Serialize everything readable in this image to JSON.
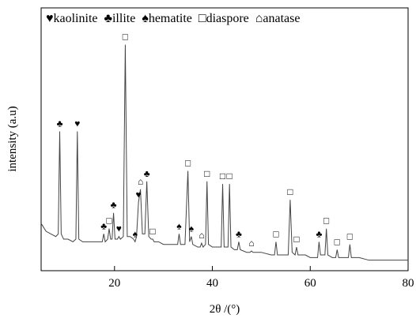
{
  "chart_data": {
    "type": "line",
    "x_label": "2θ /(°)",
    "y_label": "intensity (a.u)",
    "legend": [
      {
        "symbol": "♥",
        "name": "kaolinite"
      },
      {
        "symbol": "♣",
        "name": "illite"
      },
      {
        "symbol": "♠",
        "name": "hematite"
      },
      {
        "symbol": "□",
        "name": "diaspore"
      },
      {
        "symbol": "⌂",
        "name": "anatase"
      }
    ],
    "xlim": [
      5,
      80
    ],
    "xticks": [
      20,
      40,
      60,
      80
    ],
    "ylim": [
      0,
      100
    ],
    "color": "#444444",
    "x": [
      5,
      6,
      7,
      8,
      8.5,
      8.8,
      9.1,
      9.6,
      10.5,
      11.5,
      12.1,
      12.4,
      12.7,
      13.5,
      15,
      16.5,
      17.5,
      17.8,
      18.1,
      18.6,
      18.9,
      19.2,
      19.5,
      19.8,
      20.1,
      20.6,
      20.9,
      21.2,
      21.8,
      22.2,
      22.6,
      23.2,
      23.9,
      24.2,
      24.5,
      24.9,
      25.3,
      25.7,
      26.2,
      26.6,
      27,
      27.5,
      27.8,
      28.1,
      29,
      30,
      31,
      32,
      32.9,
      33.2,
      33.5,
      34.4,
      35,
      35.35,
      35.7,
      36,
      37,
      37.5,
      37.8,
      38.1,
      38.6,
      38.9,
      39.2,
      40,
      41,
      41.8,
      42.1,
      42.4,
      43.2,
      43.5,
      43.8,
      44.5,
      45.1,
      45.4,
      45.7,
      47,
      47.7,
      48,
      48.3,
      50,
      52,
      52.7,
      53,
      53.3,
      54,
      55.5,
      55.9,
      56.3,
      56.9,
      57.2,
      57.5,
      59,
      60,
      61.5,
      61.8,
      62.1,
      63,
      63.3,
      63.6,
      64.5,
      65.2,
      65.5,
      65.8,
      67,
      67.8,
      68.1,
      68.4,
      70,
      72,
      75,
      78,
      80
    ],
    "values": [
      18,
      15,
      14,
      13,
      14,
      53,
      14,
      12,
      12,
      11,
      12,
      53,
      12,
      11,
      11,
      11,
      11,
      14,
      11,
      12,
      16,
      12,
      12,
      22,
      12,
      12,
      13,
      12,
      13,
      86,
      13,
      13,
      12,
      11,
      13,
      26,
      31,
      14,
      14,
      34,
      13,
      12,
      12,
      11,
      11,
      10,
      10,
      10,
      10,
      14,
      10,
      10,
      38,
      11,
      13,
      10,
      9,
      9,
      10.5,
      9,
      10,
      34,
      10,
      9,
      9,
      9,
      33,
      9,
      9,
      33,
      9,
      8,
      8,
      11,
      8,
      7,
      7,
      7.5,
      7,
      7,
      6,
      6,
      11,
      6,
      6,
      6,
      27,
      7,
      6,
      9,
      6,
      6,
      5,
      5,
      11,
      6,
      6,
      16,
      6,
      5,
      5,
      8,
      5,
      5,
      5,
      10,
      5,
      5,
      4,
      4,
      4,
      4
    ],
    "annotations": [
      {
        "x": 8.8,
        "y": 53,
        "label": "♣"
      },
      {
        "x": 12.4,
        "y": 53,
        "label": "♥"
      },
      {
        "x": 17.8,
        "y": 14,
        "label": "♣"
      },
      {
        "x": 18.9,
        "y": 16,
        "label": "□"
      },
      {
        "x": 19.8,
        "y": 22,
        "label": "♣"
      },
      {
        "x": 20.9,
        "y": 13,
        "label": "♥"
      },
      {
        "x": 22.2,
        "y": 86,
        "label": "□"
      },
      {
        "x": 24.2,
        "y": 11,
        "label": "♠"
      },
      {
        "x": 24.9,
        "y": 26,
        "label": "♥"
      },
      {
        "x": 25.3,
        "y": 31,
        "label": "⌂"
      },
      {
        "x": 26.6,
        "y": 34,
        "label": "♣"
      },
      {
        "x": 27.8,
        "y": 12,
        "label": "□"
      },
      {
        "x": 33.2,
        "y": 14,
        "label": "♠"
      },
      {
        "x": 35,
        "y": 38,
        "label": "□"
      },
      {
        "x": 35.7,
        "y": 13,
        "label": "♠"
      },
      {
        "x": 37.8,
        "y": 10.5,
        "label": "⌂"
      },
      {
        "x": 38.9,
        "y": 34,
        "label": "□"
      },
      {
        "x": 42.1,
        "y": 33,
        "label": "□"
      },
      {
        "x": 43.5,
        "y": 33,
        "label": "□"
      },
      {
        "x": 45.4,
        "y": 11,
        "label": "♣"
      },
      {
        "x": 48,
        "y": 7.5,
        "label": "⌂"
      },
      {
        "x": 53,
        "y": 11,
        "label": "□"
      },
      {
        "x": 55.9,
        "y": 27,
        "label": "□"
      },
      {
        "x": 57.2,
        "y": 9,
        "label": "□"
      },
      {
        "x": 61.8,
        "y": 11,
        "label": "♣"
      },
      {
        "x": 63.3,
        "y": 16,
        "label": "□"
      },
      {
        "x": 65.5,
        "y": 8,
        "label": "□"
      },
      {
        "x": 68.1,
        "y": 10,
        "label": "□"
      }
    ]
  }
}
